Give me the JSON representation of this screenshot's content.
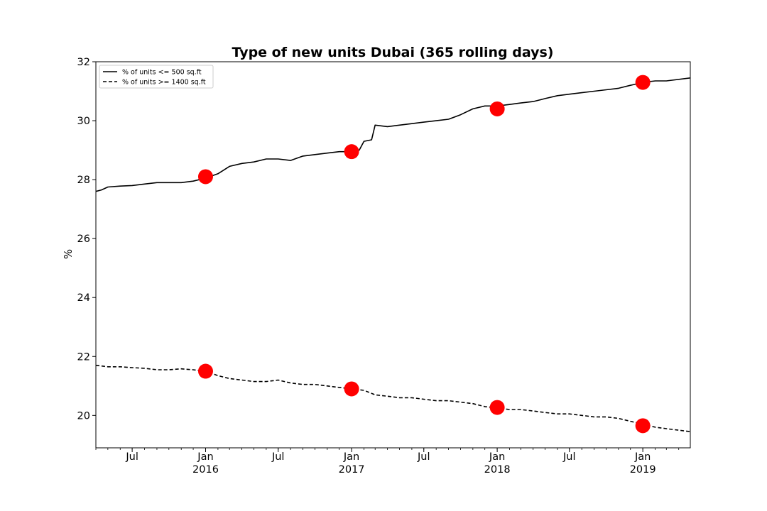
{
  "chart_data": {
    "type": "line",
    "title": "Type of new units Dubai (365 rolling days)",
    "xlabel": "",
    "ylabel": "%",
    "xlim": [
      "2015-04-01",
      "2019-04-30"
    ],
    "ylim": [
      18.9,
      32
    ],
    "y_ticks": [
      20,
      22,
      24,
      26,
      28,
      30,
      32
    ],
    "x_ticks": [
      {
        "date": "2015-07-01",
        "label": "Jul",
        "sublabel": ""
      },
      {
        "date": "2016-01-01",
        "label": "Jan",
        "sublabel": "2016"
      },
      {
        "date": "2016-07-01",
        "label": "Jul",
        "sublabel": ""
      },
      {
        "date": "2017-01-01",
        "label": "Jan",
        "sublabel": "2017"
      },
      {
        "date": "2017-07-01",
        "label": "Jul",
        "sublabel": ""
      },
      {
        "date": "2018-01-01",
        "label": "Jan",
        "sublabel": "2018"
      },
      {
        "date": "2018-07-01",
        "label": "Jul",
        "sublabel": ""
      },
      {
        "date": "2019-01-01",
        "label": "Jan",
        "sublabel": "2019"
      }
    ],
    "legend_position": "top-left",
    "grid": false,
    "series": [
      {
        "name": "% of units <= 500 sq.ft",
        "style": "solid",
        "color": "#000000",
        "x": [
          "2015-04-01",
          "2015-04-15",
          "2015-05-01",
          "2015-06-01",
          "2015-07-01",
          "2015-08-01",
          "2015-09-01",
          "2015-10-01",
          "2015-11-01",
          "2015-12-01",
          "2016-01-01",
          "2016-02-01",
          "2016-03-01",
          "2016-04-01",
          "2016-05-01",
          "2016-06-01",
          "2016-07-01",
          "2016-08-01",
          "2016-09-01",
          "2016-10-01",
          "2016-11-01",
          "2016-12-01",
          "2017-01-01",
          "2017-01-20",
          "2017-02-01",
          "2017-02-20",
          "2017-03-01",
          "2017-04-01",
          "2017-05-01",
          "2017-06-01",
          "2017-07-01",
          "2017-08-01",
          "2017-09-01",
          "2017-10-01",
          "2017-11-01",
          "2017-12-01",
          "2018-01-01",
          "2018-02-01",
          "2018-03-01",
          "2018-04-01",
          "2018-05-01",
          "2018-06-01",
          "2018-07-01",
          "2018-08-01",
          "2018-09-01",
          "2018-10-01",
          "2018-11-01",
          "2018-12-01",
          "2019-01-01",
          "2019-02-01",
          "2019-03-01",
          "2019-04-30"
        ],
        "values": [
          27.6,
          27.65,
          27.75,
          27.78,
          27.8,
          27.85,
          27.9,
          27.9,
          27.9,
          27.95,
          28.05,
          28.2,
          28.45,
          28.55,
          28.6,
          28.7,
          28.7,
          28.65,
          28.8,
          28.85,
          28.9,
          28.95,
          28.95,
          29.0,
          29.3,
          29.35,
          29.85,
          29.8,
          29.85,
          29.9,
          29.95,
          30.0,
          30.05,
          30.2,
          30.4,
          30.5,
          30.5,
          30.55,
          30.6,
          30.65,
          30.75,
          30.85,
          30.9,
          30.95,
          31.0,
          31.05,
          31.1,
          31.2,
          31.3,
          31.35,
          31.35,
          31.45
        ]
      },
      {
        "name": "% of units >= 1400 sq.ft",
        "style": "dashed",
        "color": "#000000",
        "x": [
          "2015-04-01",
          "2015-05-01",
          "2015-06-01",
          "2015-07-01",
          "2015-08-01",
          "2015-09-01",
          "2015-10-01",
          "2015-11-01",
          "2015-12-01",
          "2016-01-01",
          "2016-02-01",
          "2016-03-01",
          "2016-04-01",
          "2016-05-01",
          "2016-06-01",
          "2016-07-01",
          "2016-08-01",
          "2016-09-01",
          "2016-10-01",
          "2016-11-01",
          "2016-12-01",
          "2017-01-01",
          "2017-02-01",
          "2017-03-01",
          "2017-04-01",
          "2017-05-01",
          "2017-06-01",
          "2017-07-01",
          "2017-08-01",
          "2017-09-01",
          "2017-10-01",
          "2017-11-01",
          "2017-12-01",
          "2018-01-01",
          "2018-02-01",
          "2018-03-01",
          "2018-04-01",
          "2018-05-01",
          "2018-06-01",
          "2018-07-01",
          "2018-08-01",
          "2018-09-01",
          "2018-10-01",
          "2018-11-01",
          "2018-12-01",
          "2019-01-01",
          "2019-02-01",
          "2019-03-01",
          "2019-04-30"
        ],
        "values": [
          21.7,
          21.65,
          21.65,
          21.62,
          21.6,
          21.55,
          21.55,
          21.58,
          21.55,
          21.5,
          21.35,
          21.25,
          21.2,
          21.15,
          21.15,
          21.2,
          21.1,
          21.05,
          21.05,
          21.0,
          20.95,
          20.9,
          20.85,
          20.7,
          20.65,
          20.6,
          20.6,
          20.55,
          20.5,
          20.5,
          20.45,
          20.4,
          20.3,
          20.25,
          20.2,
          20.2,
          20.15,
          20.1,
          20.05,
          20.05,
          20.0,
          19.95,
          19.95,
          19.9,
          19.8,
          19.7,
          19.6,
          19.55,
          19.45
        ]
      }
    ],
    "markers": {
      "color": "#ff0000",
      "points": [
        {
          "x": "2016-01-01",
          "y": 28.1
        },
        {
          "x": "2017-01-01",
          "y": 28.95
        },
        {
          "x": "2018-01-01",
          "y": 30.4
        },
        {
          "x": "2019-01-01",
          "y": 31.3
        },
        {
          "x": "2016-01-01",
          "y": 21.5
        },
        {
          "x": "2017-01-01",
          "y": 20.9
        },
        {
          "x": "2018-01-01",
          "y": 20.27
        },
        {
          "x": "2019-01-01",
          "y": 19.65
        }
      ]
    }
  }
}
